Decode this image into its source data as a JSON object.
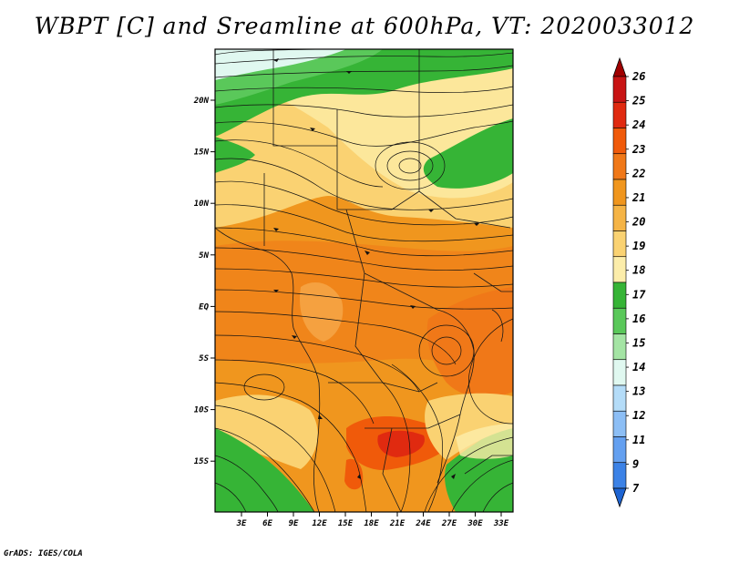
{
  "title": "WBPT [C] and Sreamline at 600hPa, VT: 2020033012",
  "footer": "GrADS: IGES/COLA",
  "map": {
    "lat_labels": [
      "20N",
      "15N",
      "10N",
      "5N",
      "EQ",
      "5S",
      "10S",
      "15S"
    ],
    "lon_labels": [
      "3E",
      "6E",
      "9E",
      "12E",
      "15E",
      "18E",
      "21E",
      "24E",
      "27E",
      "30E",
      "33E"
    ]
  },
  "colorbar": {
    "levels": [
      "26",
      "25",
      "24",
      "23",
      "22",
      "21",
      "20",
      "19",
      "18",
      "17",
      "16",
      "15",
      "14",
      "13",
      "12",
      "11",
      "9",
      "7"
    ],
    "colors": [
      "#a00000",
      "#c81414",
      "#e02a10",
      "#f05a0a",
      "#f07818",
      "#f0961e",
      "#f5b446",
      "#fad272",
      "#fcedaa",
      "#36b436",
      "#5ac85a",
      "#a4e4a4",
      "#e0f8f0",
      "#b4dcf8",
      "#8cbef5",
      "#64a0f0",
      "#3c82e6",
      "#1e64d2"
    ]
  }
}
